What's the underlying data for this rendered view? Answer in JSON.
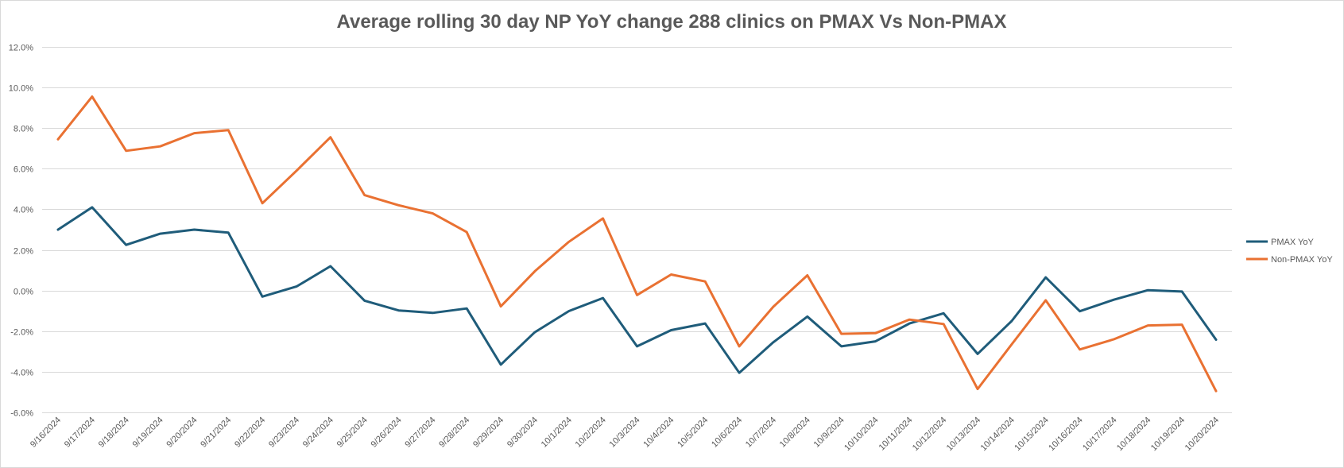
{
  "chart_data": {
    "type": "line",
    "title": "Average rolling 30 day NP YoY change 288 clinics on PMAX Vs Non-PMAX",
    "xlabel": "",
    "ylabel": "",
    "ylim": [
      -0.06,
      0.12
    ],
    "ytick_step": 0.02,
    "yticks": [
      "12.0%",
      "10.0%",
      "8.0%",
      "6.0%",
      "4.0%",
      "2.0%",
      "0.0%",
      "-2.0%",
      "-4.0%",
      "-6.0%"
    ],
    "grid": true,
    "legend_position": "right",
    "categories": [
      "9/16/2024",
      "9/17/2024",
      "9/18/2024",
      "9/19/2024",
      "9/20/2024",
      "9/21/2024",
      "9/22/2024",
      "9/23/2024",
      "9/24/2024",
      "9/25/2024",
      "9/26/2024",
      "9/27/2024",
      "9/28/2024",
      "9/29/2024",
      "9/30/2024",
      "10/1/2024",
      "10/2/2024",
      "10/3/2024",
      "10/4/2024",
      "10/5/2024",
      "10/6/2024",
      "10/7/2024",
      "10/8/2024",
      "10/9/2024",
      "10/10/2024",
      "10/11/2024",
      "10/12/2024",
      "10/13/2024",
      "10/14/2024",
      "10/15/2024",
      "10/16/2024",
      "10/17/2024",
      "10/18/2024",
      "10/19/2024",
      "10/20/2024"
    ],
    "series": [
      {
        "name": "PMAX YoY",
        "color": "#1f5c7a",
        "values": [
          0.03,
          0.041,
          0.0225,
          0.028,
          0.03,
          0.0285,
          -0.003,
          0.002,
          0.012,
          -0.005,
          -0.0098,
          -0.011,
          -0.0088,
          -0.0365,
          -0.0205,
          -0.0101,
          -0.0037,
          -0.0275,
          -0.0195,
          -0.0162,
          -0.0405,
          -0.0255,
          -0.0128,
          -0.0275,
          -0.025,
          -0.0162,
          -0.0112,
          -0.0312,
          -0.015,
          0.0065,
          -0.0102,
          -0.0045,
          0.0002,
          -0.0005,
          -0.0242
        ]
      },
      {
        "name": "Non-PMAX YoY",
        "color": "#e97132",
        "values": [
          0.0745,
          0.0955,
          0.0688,
          0.071,
          0.0775,
          0.079,
          0.043,
          0.059,
          0.0755,
          0.047,
          0.042,
          0.038,
          0.0288,
          -0.0078,
          0.0095,
          0.024,
          0.0355,
          -0.0022,
          0.0079,
          0.0045,
          -0.0275,
          -0.008,
          0.0075,
          -0.0213,
          -0.021,
          -0.0143,
          -0.0165,
          -0.0485,
          -0.0265,
          -0.0048,
          -0.029,
          -0.024,
          -0.0172,
          -0.0168,
          -0.0495
        ]
      }
    ]
  }
}
